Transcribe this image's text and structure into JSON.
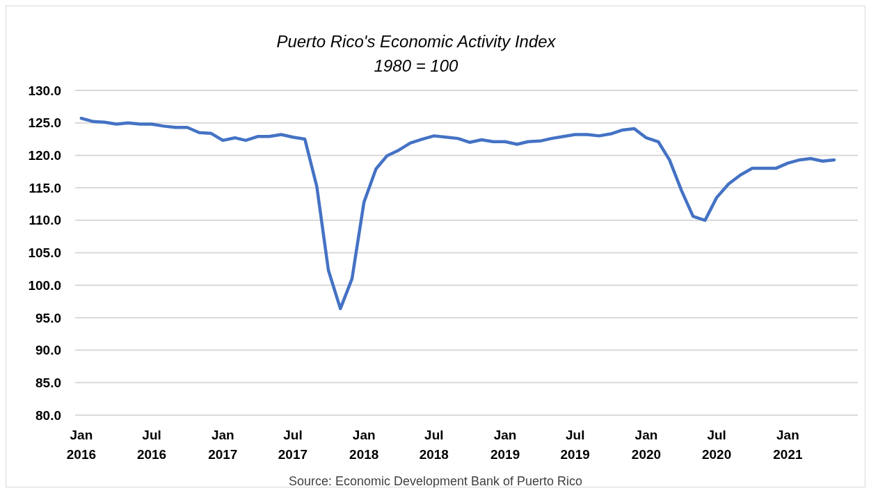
{
  "chart_data": {
    "type": "line",
    "title": "Puerto Rico's Economic Activity Index",
    "subtitle": "1980 = 100",
    "x": [
      "2016-01",
      "2016-02",
      "2016-03",
      "2016-04",
      "2016-05",
      "2016-06",
      "2016-07",
      "2016-08",
      "2016-09",
      "2016-10",
      "2016-11",
      "2016-12",
      "2017-01",
      "2017-02",
      "2017-03",
      "2017-04",
      "2017-05",
      "2017-06",
      "2017-07",
      "2017-08",
      "2017-09",
      "2017-10",
      "2017-11",
      "2017-12",
      "2018-01",
      "2018-02",
      "2018-03",
      "2018-04",
      "2018-05",
      "2018-06",
      "2018-07",
      "2018-08",
      "2018-09",
      "2018-10",
      "2018-11",
      "2018-12",
      "2019-01",
      "2019-02",
      "2019-03",
      "2019-04",
      "2019-05",
      "2019-06",
      "2019-07",
      "2019-08",
      "2019-09",
      "2019-10",
      "2019-11",
      "2019-12",
      "2020-01",
      "2020-02",
      "2020-03",
      "2020-04",
      "2020-05",
      "2020-06",
      "2020-07",
      "2020-08",
      "2020-09",
      "2020-10",
      "2020-11",
      "2020-12",
      "2021-01",
      "2021-02",
      "2021-03",
      "2021-04",
      "2021-05"
    ],
    "series": [
      {
        "color": "#4472c4",
        "values": [
          125.7,
          125.2,
          125.1,
          124.8,
          125.0,
          124.8,
          124.8,
          124.5,
          124.3,
          124.3,
          123.5,
          123.4,
          122.3,
          122.7,
          122.3,
          122.9,
          122.9,
          123.2,
          122.8,
          122.5,
          115.2,
          102.3,
          96.4,
          101.0,
          112.8,
          117.9,
          119.9,
          120.8,
          121.9,
          122.5,
          123.0,
          122.8,
          122.6,
          122.0,
          122.4,
          122.1,
          122.1,
          121.7,
          122.1,
          122.2,
          122.6,
          122.9,
          123.2,
          123.2,
          123.0,
          123.3,
          123.9,
          124.1,
          122.7,
          122.1,
          119.3,
          114.6,
          110.6,
          110.0,
          113.5,
          115.6,
          117.0,
          118.0,
          118.0,
          118.0,
          118.8,
          119.3,
          119.5,
          119.1,
          119.3
        ]
      }
    ],
    "xlim": [
      "2015-12-16",
      "2021-07-01"
    ],
    "xticks": [
      {
        "value": "2016-01",
        "label": "Jan 2016"
      },
      {
        "value": "2016-07",
        "label": "Jul 2016"
      },
      {
        "value": "2017-01",
        "label": "Jan 2017"
      },
      {
        "value": "2017-07",
        "label": "Jul 2017"
      },
      {
        "value": "2018-01",
        "label": "Jan 2018"
      },
      {
        "value": "2018-07",
        "label": "Jul 2018"
      },
      {
        "value": "2019-01",
        "label": "Jan 2019"
      },
      {
        "value": "2019-07",
        "label": "Jul 2019"
      },
      {
        "value": "2020-01",
        "label": "Jan 2020"
      },
      {
        "value": "2020-07",
        "label": "Jul 2020"
      },
      {
        "value": "2021-01",
        "label": "Jan 2021"
      }
    ],
    "ylim": [
      80,
      130
    ],
    "yticks": [
      {
        "value": 80,
        "label": "80.0"
      },
      {
        "value": 85,
        "label": "85.0"
      },
      {
        "value": 90,
        "label": "90.0"
      },
      {
        "value": 95,
        "label": "95.0"
      },
      {
        "value": 100,
        "label": "100.0"
      },
      {
        "value": 105,
        "label": "105.0"
      },
      {
        "value": 110,
        "label": "110.0"
      },
      {
        "value": 115,
        "label": "115.0"
      },
      {
        "value": 120,
        "label": "120.0"
      },
      {
        "value": 125,
        "label": "125.0"
      },
      {
        "value": 130,
        "label": "130.0"
      }
    ],
    "grid": "y",
    "line_style": "solid",
    "marker": "none",
    "annotations": [
      "Source: Economic Development Bank of Puerto Rico"
    ]
  }
}
